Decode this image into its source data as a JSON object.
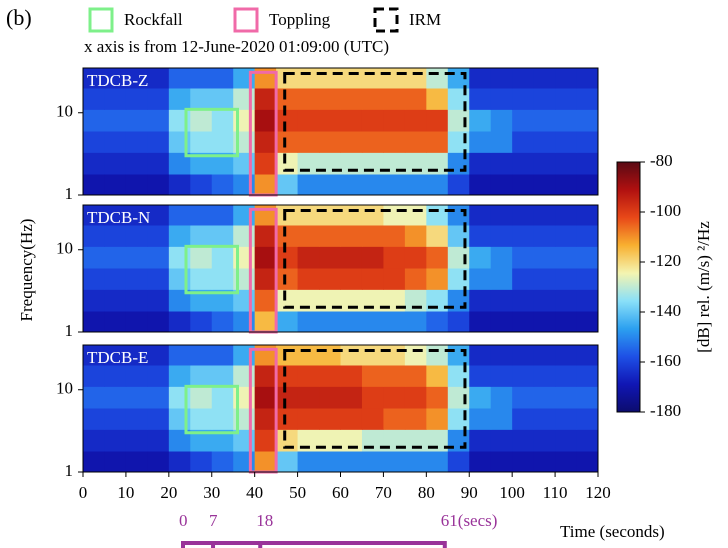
{
  "header": {
    "panel_label": "(b)",
    "subtitle": "x axis is from 12-June-2020 01:09:00 (UTC)"
  },
  "legend": [
    {
      "label": "Rockfall",
      "color": "#7ef08a",
      "dashed": false
    },
    {
      "label": "Toppling",
      "color": "#f06aa8",
      "dashed": false
    },
    {
      "label": "IRM",
      "color": "#000000",
      "dashed": true
    }
  ],
  "y_label": "Frequency(Hz)",
  "x_label": "Time (seconds)",
  "xlim": [
    0,
    120
  ],
  "xticks": [
    0,
    10,
    20,
    30,
    40,
    50,
    60,
    70,
    80,
    90,
    100,
    110,
    120
  ],
  "colorbar": {
    "label": "[dB] rel. (m/s) ²/Hz",
    "zlim": [
      -180,
      -80
    ],
    "ticks": [
      -80,
      -100,
      -120,
      -140,
      -160,
      -180
    ],
    "colors": [
      "#0c0c6e",
      "#1016b4",
      "#1e50e6",
      "#2ca0f0",
      "#8ae0f8",
      "#f4f4b0",
      "#f8b030",
      "#e84818",
      "#b01010",
      "#5a0a14"
    ]
  },
  "timeline": {
    "start": 23.3,
    "color": "#993399",
    "ticks": [
      0,
      7,
      18,
      {
        "value": 61,
        "label": "61(secs)"
      }
    ]
  },
  "chart_data": [
    {
      "type": "heatmap",
      "title": "TDCB-Z",
      "ylim": [
        1,
        35
      ],
      "yticks": [
        1,
        10
      ],
      "x_edges": [
        0,
        5,
        10,
        15,
        20,
        25,
        30,
        35,
        40,
        45,
        50,
        55,
        60,
        65,
        70,
        75,
        80,
        85,
        90,
        95,
        100,
        105,
        110,
        115,
        120
      ],
      "y_edges": [
        1,
        1.8,
        3.3,
        6,
        11,
        20,
        35
      ],
      "z": [
        [
          -170,
          -170,
          -170,
          -170,
          -165,
          -160,
          -155,
          -150,
          -110,
          -140,
          -150,
          -150,
          -150,
          -150,
          -150,
          -150,
          -150,
          -160,
          -170,
          -170,
          -170,
          -170,
          -170,
          -170
        ],
        [
          -165,
          -165,
          -165,
          -165,
          -150,
          -145,
          -145,
          -140,
          -100,
          -125,
          -130,
          -130,
          -130,
          -130,
          -130,
          -130,
          -130,
          -150,
          -165,
          -165,
          -165,
          -165,
          -165,
          -165
        ],
        [
          -160,
          -160,
          -160,
          -160,
          -140,
          -135,
          -135,
          -130,
          -95,
          -105,
          -105,
          -105,
          -105,
          -105,
          -105,
          -105,
          -105,
          -135,
          -150,
          -150,
          -160,
          -160,
          -160,
          -160
        ],
        [
          -155,
          -155,
          -155,
          -155,
          -135,
          -130,
          -135,
          -125,
          -90,
          -100,
          -100,
          -100,
          -100,
          -100,
          -100,
          -100,
          -100,
          -130,
          -145,
          -150,
          -155,
          -155,
          -155,
          -155
        ],
        [
          -160,
          -160,
          -160,
          -160,
          -145,
          -140,
          -140,
          -130,
          -95,
          -105,
          -105,
          -105,
          -105,
          -105,
          -105,
          -105,
          -115,
          -135,
          -160,
          -160,
          -160,
          -160,
          -160,
          -160
        ],
        [
          -165,
          -165,
          -165,
          -165,
          -155,
          -155,
          -155,
          -145,
          -110,
          -120,
          -120,
          -120,
          -120,
          -120,
          -120,
          -120,
          -130,
          -145,
          -165,
          -165,
          -165,
          -165,
          -165,
          -165
        ]
      ],
      "boxes": [
        {
          "kind": 0,
          "x": [
            24,
            36
          ],
          "y": [
            3,
            11
          ]
        },
        {
          "kind": 1,
          "x": [
            39,
            45
          ],
          "y": [
            1,
            31
          ]
        },
        {
          "kind": 2,
          "x": [
            47,
            89
          ],
          "y": [
            2,
            30
          ]
        }
      ]
    },
    {
      "type": "heatmap",
      "title": "TDCB-N",
      "ylim": [
        1,
        35
      ],
      "yticks": [
        1,
        10
      ],
      "x_edges": [
        0,
        5,
        10,
        15,
        20,
        25,
        30,
        35,
        40,
        45,
        50,
        55,
        60,
        65,
        70,
        75,
        80,
        85,
        90,
        95,
        100,
        105,
        110,
        115,
        120
      ],
      "y_edges": [
        1,
        1.8,
        3.3,
        6,
        11,
        20,
        35
      ],
      "z": [
        [
          -170,
          -170,
          -170,
          -170,
          -165,
          -160,
          -155,
          -150,
          -115,
          -145,
          -150,
          -150,
          -150,
          -150,
          -150,
          -150,
          -155,
          -160,
          -170,
          -170,
          -170,
          -170,
          -170,
          -170
        ],
        [
          -165,
          -165,
          -165,
          -165,
          -150,
          -145,
          -145,
          -140,
          -105,
          -125,
          -125,
          -125,
          -125,
          -125,
          -125,
          -130,
          -135,
          -150,
          -165,
          -165,
          -165,
          -165,
          -165,
          -165
        ],
        [
          -160,
          -160,
          -160,
          -160,
          -140,
          -135,
          -135,
          -130,
          -95,
          -105,
          -100,
          -100,
          -100,
          -100,
          -100,
          -105,
          -110,
          -135,
          -150,
          -150,
          -160,
          -160,
          -160,
          -160
        ],
        [
          -155,
          -155,
          -155,
          -155,
          -135,
          -130,
          -135,
          -125,
          -90,
          -100,
          -95,
          -95,
          -95,
          -95,
          -100,
          -100,
          -105,
          -130,
          -145,
          -150,
          -155,
          -155,
          -155,
          -155
        ],
        [
          -160,
          -160,
          -160,
          -160,
          -145,
          -140,
          -140,
          -130,
          -95,
          -105,
          -105,
          -105,
          -105,
          -105,
          -105,
          -110,
          -120,
          -140,
          -160,
          -160,
          -160,
          -160,
          -160,
          -160
        ],
        [
          -165,
          -165,
          -165,
          -165,
          -155,
          -155,
          -155,
          -145,
          -110,
          -120,
          -120,
          -120,
          -120,
          -120,
          -125,
          -125,
          -135,
          -150,
          -165,
          -165,
          -165,
          -165,
          -165,
          -165
        ]
      ],
      "boxes": [
        {
          "kind": 0,
          "x": [
            24,
            36
          ],
          "y": [
            3,
            11
          ]
        },
        {
          "kind": 1,
          "x": [
            39,
            45
          ],
          "y": [
            1,
            31
          ]
        },
        {
          "kind": 2,
          "x": [
            47,
            89
          ],
          "y": [
            2,
            30
          ]
        }
      ]
    },
    {
      "type": "heatmap",
      "title": "TDCB-E",
      "ylim": [
        1,
        35
      ],
      "yticks": [
        1,
        10
      ],
      "x_edges": [
        0,
        5,
        10,
        15,
        20,
        25,
        30,
        35,
        40,
        45,
        50,
        55,
        60,
        65,
        70,
        75,
        80,
        85,
        90,
        95,
        100,
        105,
        110,
        115,
        120
      ],
      "y_edges": [
        1,
        1.8,
        3.3,
        6,
        11,
        20,
        35
      ],
      "z": [
        [
          -170,
          -170,
          -170,
          -170,
          -165,
          -160,
          -155,
          -150,
          -110,
          -140,
          -150,
          -150,
          -150,
          -150,
          -150,
          -150,
          -150,
          -160,
          -170,
          -170,
          -170,
          -170,
          -170,
          -170
        ],
        [
          -165,
          -165,
          -165,
          -165,
          -150,
          -145,
          -145,
          -140,
          -100,
          -120,
          -125,
          -125,
          -125,
          -130,
          -130,
          -130,
          -130,
          -150,
          -165,
          -165,
          -165,
          -165,
          -165,
          -165
        ],
        [
          -160,
          -160,
          -160,
          -160,
          -140,
          -135,
          -135,
          -130,
          -95,
          -100,
          -100,
          -100,
          -100,
          -100,
          -105,
          -105,
          -110,
          -135,
          -150,
          -150,
          -160,
          -160,
          -160,
          -160
        ],
        [
          -155,
          -155,
          -155,
          -155,
          -135,
          -130,
          -135,
          -125,
          -90,
          -95,
          -95,
          -95,
          -95,
          -100,
          -100,
          -100,
          -105,
          -130,
          -145,
          -150,
          -155,
          -155,
          -155,
          -155
        ],
        [
          -160,
          -160,
          -160,
          -160,
          -145,
          -140,
          -140,
          -130,
          -95,
          -100,
          -100,
          -100,
          -100,
          -105,
          -105,
          -105,
          -115,
          -135,
          -160,
          -160,
          -160,
          -160,
          -160,
          -160
        ],
        [
          -165,
          -165,
          -165,
          -165,
          -155,
          -155,
          -155,
          -145,
          -110,
          -115,
          -115,
          -115,
          -120,
          -120,
          -120,
          -125,
          -130,
          -145,
          -165,
          -165,
          -165,
          -165,
          -165,
          -165
        ]
      ],
      "boxes": [
        {
          "kind": 0,
          "x": [
            24,
            36
          ],
          "y": [
            3,
            11
          ]
        },
        {
          "kind": 1,
          "x": [
            39,
            45
          ],
          "y": [
            1,
            31
          ]
        },
        {
          "kind": 2,
          "x": [
            47,
            89
          ],
          "y": [
            2,
            30
          ]
        }
      ]
    }
  ]
}
